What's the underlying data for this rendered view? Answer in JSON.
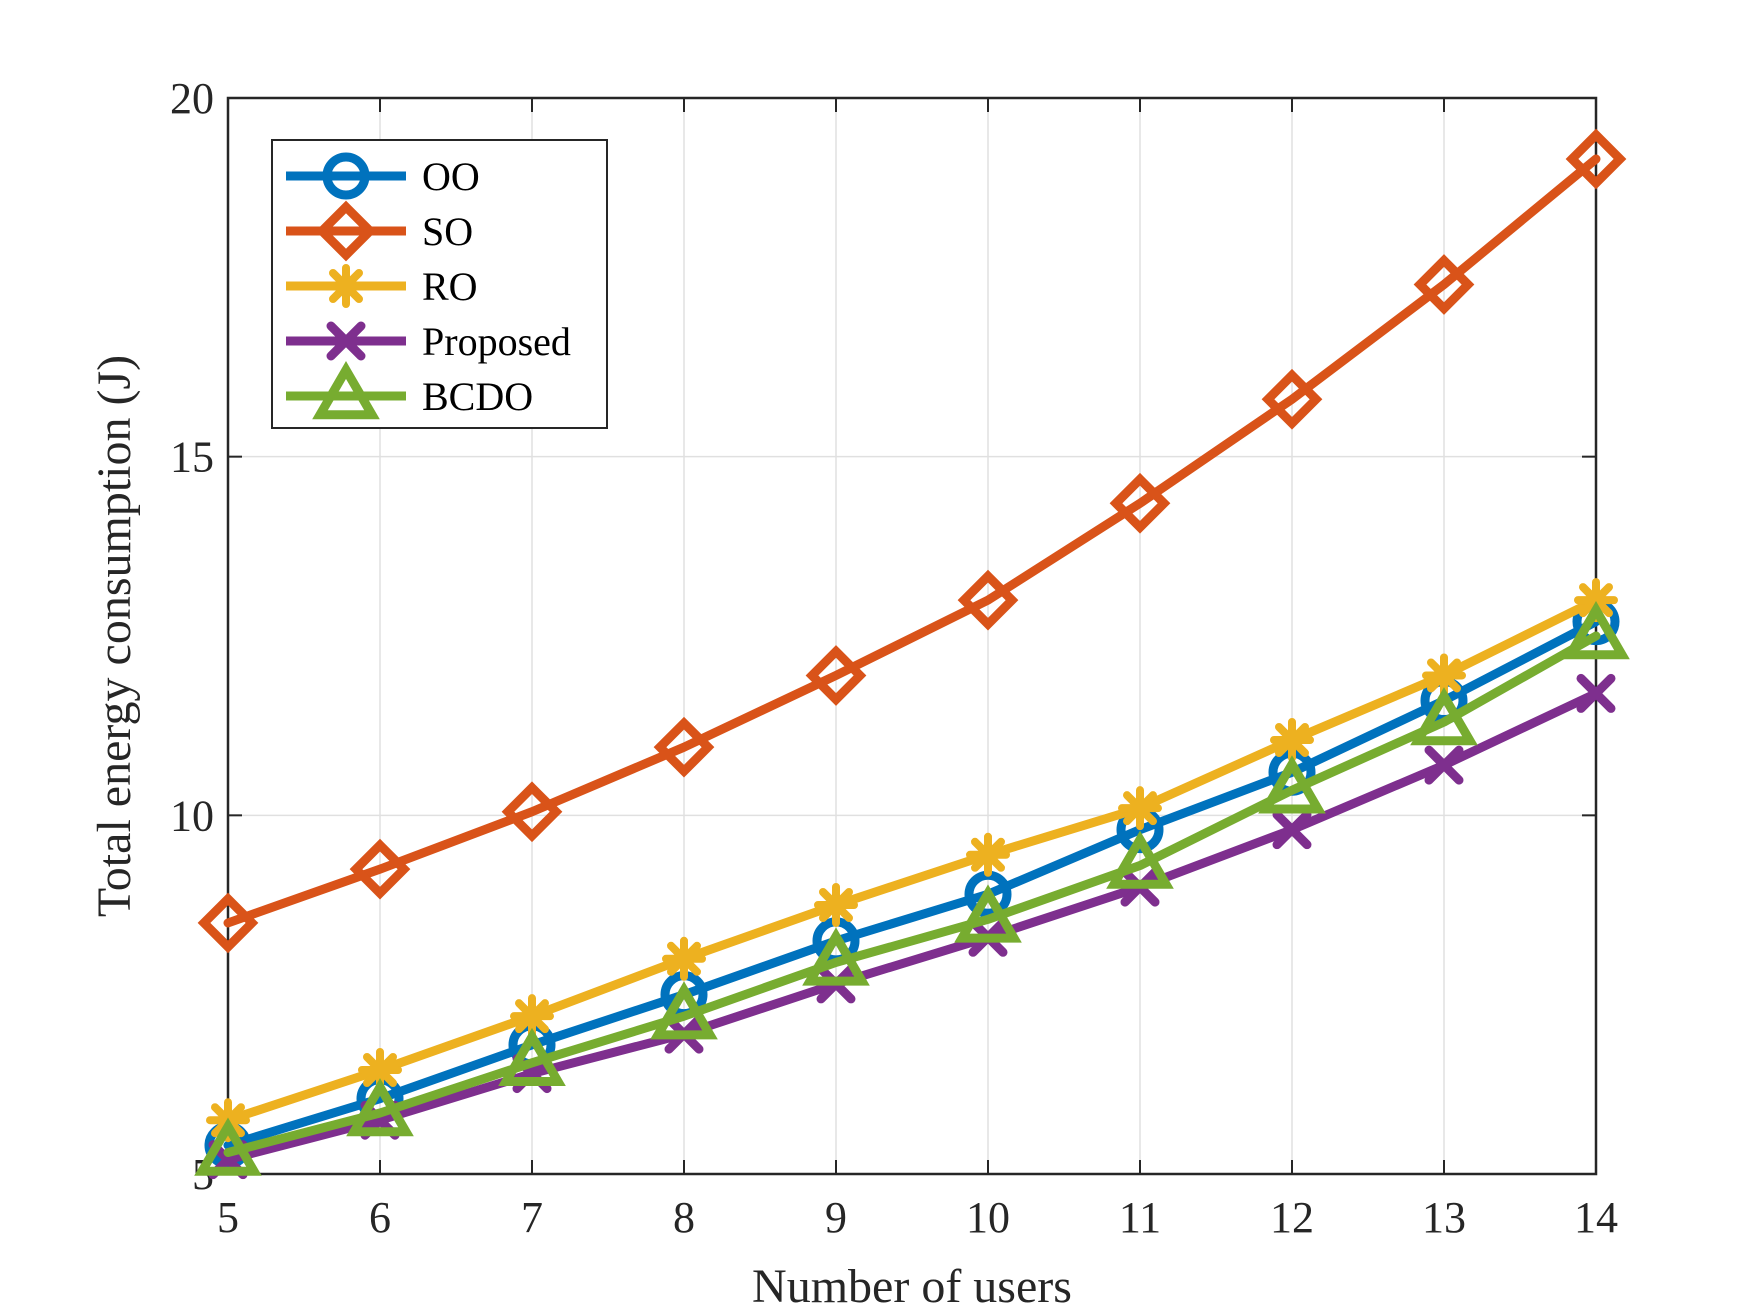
{
  "chart_data": {
    "type": "line",
    "title": "",
    "xlabel": "Number of users",
    "ylabel": "Total energy consumption (J)",
    "xlim": [
      5,
      14
    ],
    "ylim": [
      5,
      20
    ],
    "x": [
      5,
      6,
      7,
      8,
      9,
      10,
      11,
      12,
      13,
      14
    ],
    "xticks": [
      "5",
      "6",
      "7",
      "8",
      "9",
      "10",
      "11",
      "12",
      "13",
      "14"
    ],
    "yticks": [
      "5",
      "10",
      "15",
      "20"
    ],
    "grid": true,
    "legend_position": "top-left",
    "series": [
      {
        "name": "OO",
        "color": "#0072BD",
        "marker": "circle",
        "values": [
          5.4,
          6.05,
          6.8,
          7.5,
          8.25,
          8.9,
          9.8,
          10.6,
          11.6,
          12.7
        ]
      },
      {
        "name": "SO",
        "color": "#D95319",
        "marker": "diamond",
        "values": [
          8.5,
          9.25,
          10.05,
          10.95,
          11.95,
          13.0,
          14.35,
          15.8,
          17.4,
          19.15
        ]
      },
      {
        "name": "RO",
        "color": "#EDB120",
        "marker": "asterisk",
        "values": [
          5.75,
          6.45,
          7.2,
          8.0,
          8.75,
          9.45,
          10.1,
          11.05,
          11.95,
          13.0
        ]
      },
      {
        "name": "Proposed",
        "color": "#7E2F8E",
        "marker": "x",
        "values": [
          5.2,
          5.75,
          6.4,
          6.95,
          7.65,
          8.3,
          9.0,
          9.8,
          10.7,
          11.7
        ]
      },
      {
        "name": "BCDO",
        "color": "#77AC30",
        "marker": "triangle",
        "values": [
          5.3,
          5.85,
          6.55,
          7.2,
          7.95,
          8.55,
          9.3,
          10.35,
          11.3,
          12.5
        ]
      }
    ]
  }
}
